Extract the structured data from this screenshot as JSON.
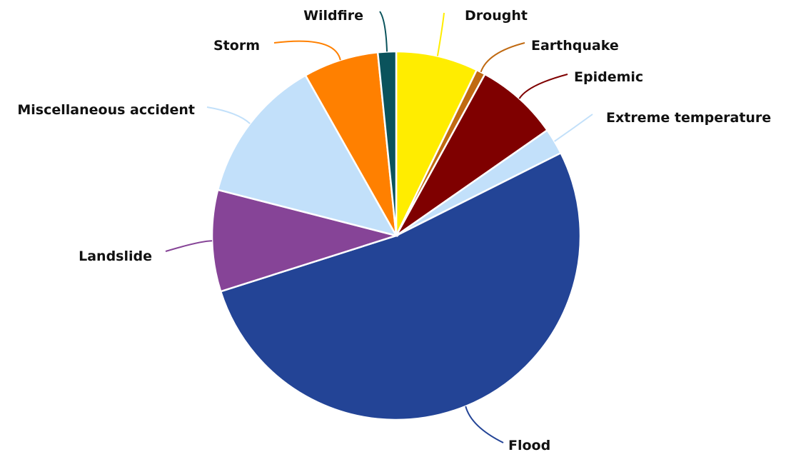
{
  "chart_data": {
    "type": "pie",
    "title": "",
    "legend": "none",
    "slices": [
      {
        "label": "Drought",
        "value": 7.2,
        "color": "#ffed00"
      },
      {
        "label": "Earthquake",
        "value": 0.8,
        "color": "#c06a12"
      },
      {
        "label": "Epidemic",
        "value": 7.3,
        "color": "#7f0000"
      },
      {
        "label": "Extreme temperature",
        "value": 2.3,
        "color": "#c2e0fa"
      },
      {
        "label": "Flood",
        "value": 52.5,
        "color": "#234496"
      },
      {
        "label": "Landslide",
        "value": 8.9,
        "color": "#864497"
      },
      {
        "label": "Miscellaneous accident",
        "value": 12.8,
        "color": "#c2e0fa"
      },
      {
        "label": "Storm",
        "value": 6.6,
        "color": "#ff8000"
      },
      {
        "label": "Wildfire",
        "value": 1.6,
        "color": "#0a535c"
      }
    ]
  }
}
